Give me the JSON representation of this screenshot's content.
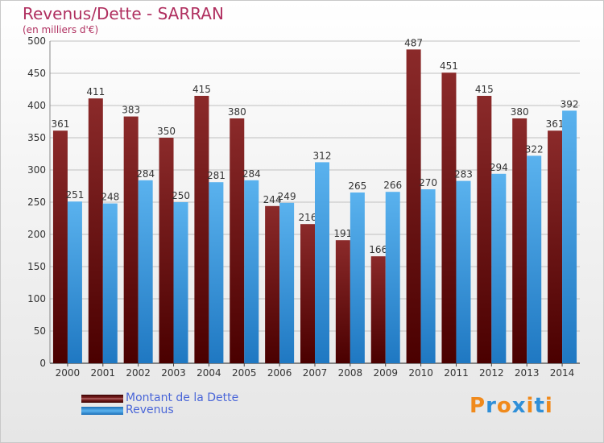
{
  "chart_data": {
    "type": "bar",
    "title": "Revenus/Dette - SARRAN",
    "subtitle": "(en milliers d'€)",
    "categories": [
      "2000",
      "2001",
      "2002",
      "2003",
      "2004",
      "2005",
      "2006",
      "2007",
      "2008",
      "2009",
      "2010",
      "2011",
      "2012",
      "2013",
      "2014"
    ],
    "series": [
      {
        "name": "Montant de la Dette",
        "color": "#8b2a2a",
        "values": [
          361,
          411,
          383,
          350,
          415,
          380,
          244,
          216,
          191,
          166,
          487,
          451,
          415,
          380,
          361
        ]
      },
      {
        "name": "Revenus",
        "color": "#3d9de0",
        "values": [
          251,
          248,
          284,
          250,
          281,
          284,
          249,
          312,
          265,
          266,
          270,
          283,
          294,
          322,
          392
        ]
      }
    ],
    "ylim": [
      0,
      500
    ],
    "yticks": [
      0,
      50,
      100,
      150,
      200,
      250,
      300,
      350,
      400,
      450,
      500
    ],
    "grid": true,
    "legend_position": "bottom-left"
  },
  "logo": {
    "letters": [
      "P",
      "r",
      "o",
      "x",
      "i",
      "t",
      "i"
    ],
    "colors": [
      "#f08a1c",
      "#2f8fd8",
      "#f08a1c",
      "#2f8fd8",
      "#f08a1c",
      "#2f8fd8",
      "#f08a1c"
    ]
  }
}
